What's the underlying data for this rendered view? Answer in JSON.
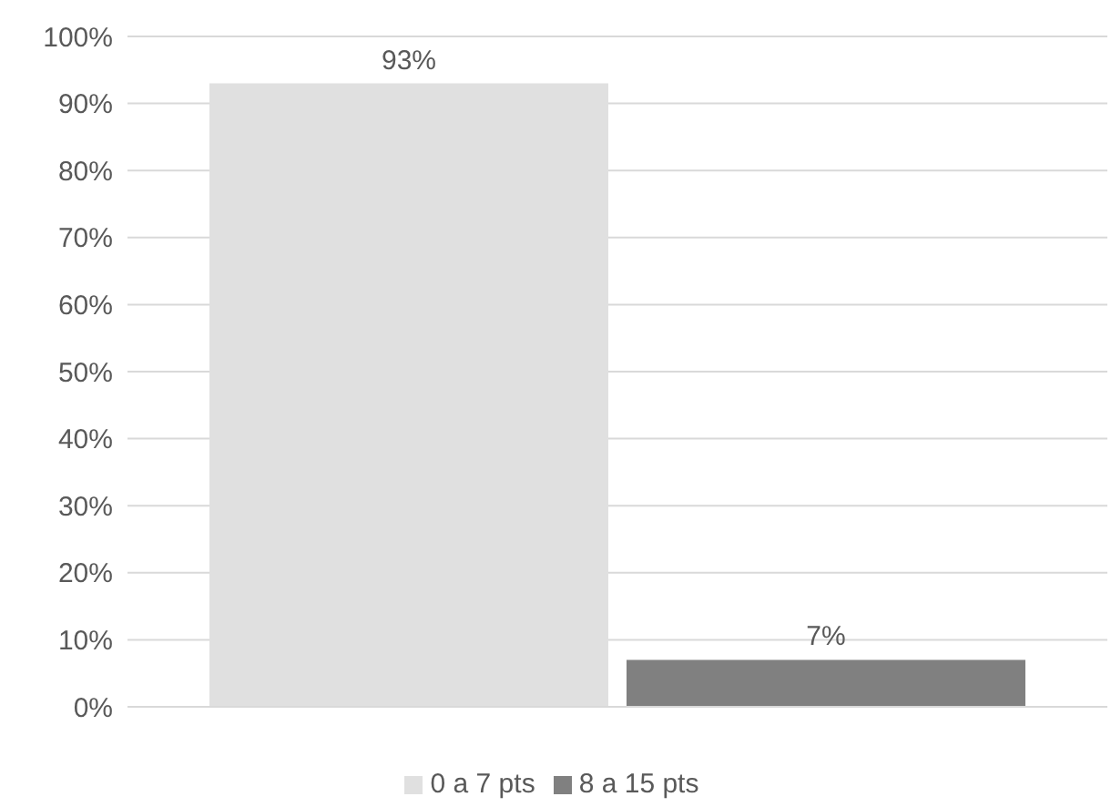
{
  "chart_data": {
    "type": "bar",
    "categories": [
      null
    ],
    "series": [
      {
        "name": "0 a 7 pts",
        "color": "#e0e0e0",
        "values": [
          93
        ],
        "value_labels": [
          "93%"
        ]
      },
      {
        "name": "8 a 15 pts",
        "color": "#808080",
        "values": [
          7
        ],
        "value_labels": [
          "7%"
        ]
      }
    ],
    "ylim": [
      0,
      100
    ],
    "yticks": [
      {
        "value": 0,
        "label": "0%"
      },
      {
        "value": 10,
        "label": "10%"
      },
      {
        "value": 20,
        "label": "20%"
      },
      {
        "value": 30,
        "label": "30%"
      },
      {
        "value": 40,
        "label": "40%"
      },
      {
        "value": 50,
        "label": "50%"
      },
      {
        "value": 60,
        "label": "60%"
      },
      {
        "value": 70,
        "label": "70%"
      },
      {
        "value": 80,
        "label": "80%"
      },
      {
        "value": 90,
        "label": "90%"
      },
      {
        "value": 100,
        "label": "100%"
      }
    ],
    "grid": "y",
    "legend": "bottom"
  }
}
